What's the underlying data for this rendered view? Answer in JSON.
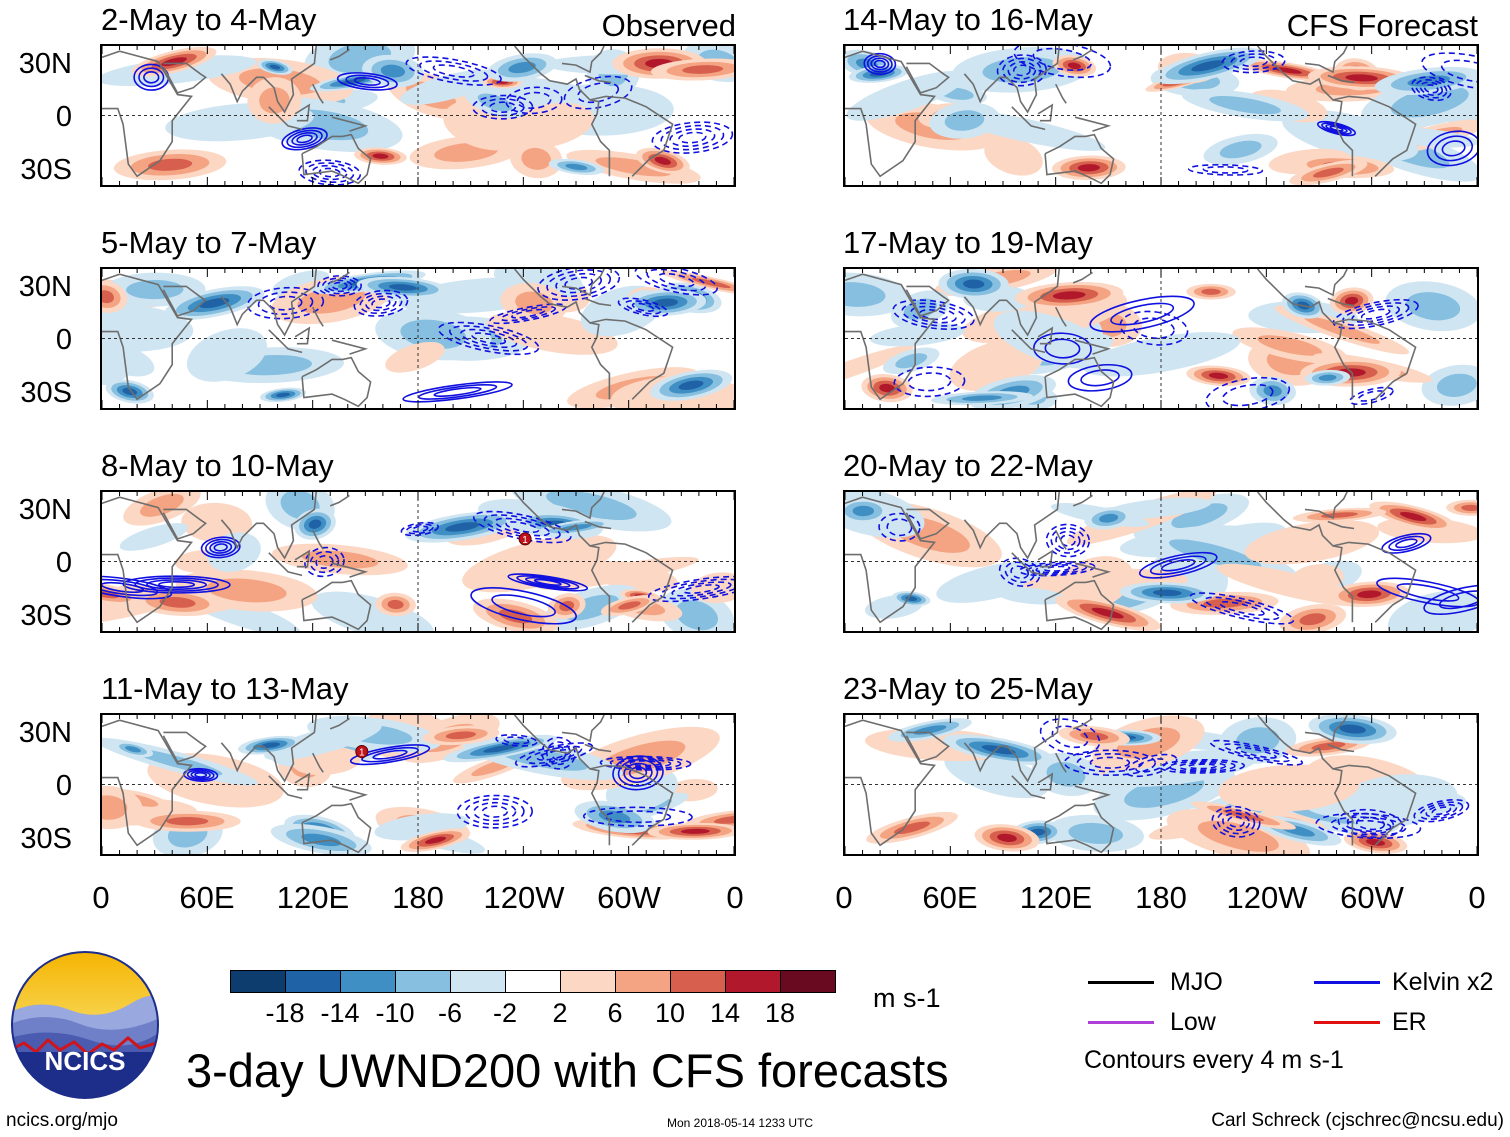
{
  "panels_left": [
    {
      "title": "2-May to 4-May",
      "label": "Observed"
    },
    {
      "title": "5-May to 7-May",
      "label": ""
    },
    {
      "title": "8-May to 10-May",
      "label": ""
    },
    {
      "title": "11-May to 13-May",
      "label": ""
    }
  ],
  "panels_right": [
    {
      "title": "14-May to 16-May",
      "label": "CFS Forecast"
    },
    {
      "title": "17-May to 19-May",
      "label": ""
    },
    {
      "title": "20-May to 22-May",
      "label": ""
    },
    {
      "title": "23-May to 25-May",
      "label": ""
    }
  ],
  "y_ticks": [
    "30N",
    "0",
    "30S"
  ],
  "x_ticks": [
    "0",
    "60E",
    "120E",
    "180",
    "120W",
    "60W",
    "0"
  ],
  "colorbar": {
    "labels": [
      "-18",
      "-14",
      "-10",
      "-6",
      "-2",
      "2",
      "6",
      "10",
      "14",
      "18"
    ],
    "units": "m s-1",
    "colors": [
      "#0d3c6e",
      "#1f63a6",
      "#3f8fc4",
      "#86bfdf",
      "#cfe5f2",
      "#ffffff",
      "#fcd7c3",
      "#f4a482",
      "#d6604d",
      "#b2182b",
      "#6a0a20"
    ]
  },
  "legend": {
    "items": [
      {
        "label": "MJO",
        "color": "#000000"
      },
      {
        "label": "Kelvin x2",
        "color": "#1010e0"
      },
      {
        "label": "Low",
        "color": "#b03fd8"
      },
      {
        "label": "ER",
        "color": "#e01010"
      }
    ],
    "note": "Contours every 4 m s-1"
  },
  "logo": {
    "text": "NCICS"
  },
  "main_title": "3-day UWND200 with CFS forecasts",
  "footer": {
    "left": "ncics.org/mjo",
    "center": "Mon 2018-05-14 1233 UTC",
    "right": "Carl Schreck (cjschrec@ncsu.edu)"
  },
  "tc_markers": [
    "1",
    "1"
  ]
}
